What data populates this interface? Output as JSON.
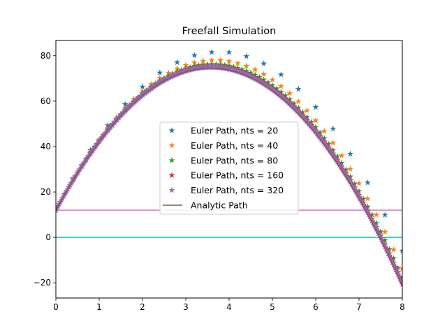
{
  "chart_data": {
    "type": "scatter",
    "title": "Freefall Simulation",
    "xlabel": "",
    "ylabel": "",
    "xlim": [
      0,
      8
    ],
    "ylim": [
      -26.7,
      86.7
    ],
    "x_ticks": [
      0,
      1,
      2,
      3,
      4,
      5,
      6,
      7,
      8
    ],
    "y_ticks": [
      -20,
      0,
      20,
      40,
      60,
      80
    ],
    "grid": false,
    "legend_position": "center",
    "model": {
      "y0": 12,
      "v0": 35,
      "g": 9.8,
      "t_end": 8
    },
    "series": [
      {
        "name": "Euler Path, nts = 20",
        "type": "scatter",
        "marker": "star",
        "color": "#1f77b4",
        "nts": 20
      },
      {
        "name": "Euler Path, nts = 40",
        "type": "scatter",
        "marker": "star",
        "color": "#ff7f0e",
        "nts": 40
      },
      {
        "name": "Euler Path, nts = 80",
        "type": "scatter",
        "marker": "star",
        "color": "#2ca02c",
        "nts": 80
      },
      {
        "name": "Euler Path, nts = 160",
        "type": "scatter",
        "marker": "star",
        "color": "#d62728",
        "nts": 160
      },
      {
        "name": "Euler Path, nts = 320",
        "type": "scatter",
        "marker": "star",
        "color": "#9467bd",
        "nts": 320
      },
      {
        "name": "Analytic Path",
        "type": "line",
        "color": "#8c564b"
      }
    ],
    "reference_lines": [
      {
        "y": 12,
        "color": "#e377c2"
      },
      {
        "y": 0,
        "color": "#17becf"
      }
    ]
  }
}
